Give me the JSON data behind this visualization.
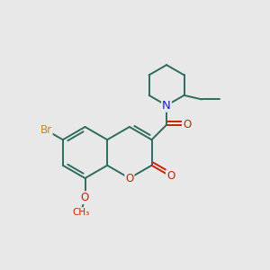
{
  "bg_color": "#e8e8e8",
  "bond_color": "#2d6b5e",
  "bond_width": 1.4,
  "atom_colors": {
    "Br": "#cc8800",
    "O": "#cc2200",
    "N": "#1a1aee",
    "C": "#2d6b5e"
  },
  "font_size": 8.5,
  "fig_size": [
    3.0,
    3.0
  ],
  "dpi": 100
}
